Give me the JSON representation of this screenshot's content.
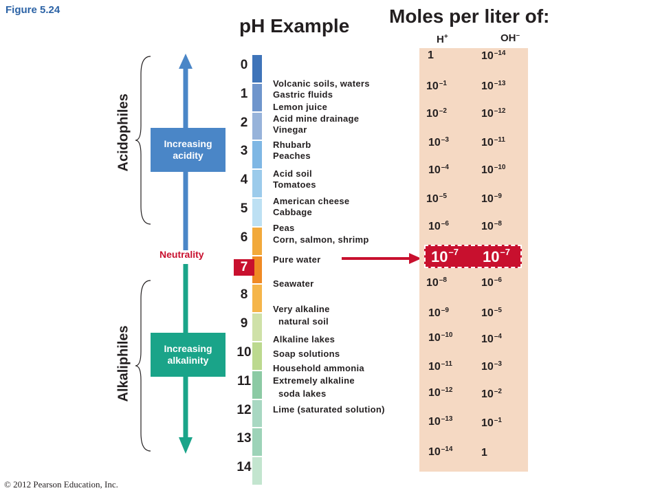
{
  "figure_label": "Figure 5.24",
  "ph_title": "pH Example",
  "moles_title": "Moles per liter of:",
  "h_heading": "H+",
  "oh_heading": "OH–",
  "acidophiles_label": "Acidophiles",
  "alkaliphiles_label": "Alkaliphiles",
  "increasing_acidity": [
    "Increasing",
    "acidity"
  ],
  "increasing_alkalinity": [
    "Increasing",
    "alkalinity"
  ],
  "neutrality_label": "Neutrality",
  "copyright": "© 2012 Pearson Education, Inc.",
  "ph_scale": [
    "0",
    "1",
    "2",
    "3",
    "4",
    "5",
    "6",
    "7",
    "8",
    "9",
    "10",
    "11",
    "12",
    "13",
    "14"
  ],
  "examples": [
    "Volcanic soils, waters",
    "Gastric fluids",
    "Lemon juice",
    "Acid mine drainage",
    "Vinegar",
    "Rhubarb",
    "Peaches",
    "Acid soil",
    "Tomatoes",
    "American cheese",
    "Cabbage",
    "Peas",
    "Corn, salmon, shrimp",
    "Pure water",
    "Seawater",
    "Very alkaline",
    "natural soil",
    "Alkaline lakes",
    "Soap solutions",
    "Household ammonia",
    "Extremely alkaline",
    "soda lakes",
    "Lime (saturated solution)"
  ],
  "h_concentration": [
    {
      "base": "1",
      "exp": ""
    },
    {
      "base": "10",
      "exp": "–1"
    },
    {
      "base": "10",
      "exp": "–2"
    },
    {
      "base": "10",
      "exp": "–3"
    },
    {
      "base": "10",
      "exp": "–4"
    },
    {
      "base": "10",
      "exp": "–5"
    },
    {
      "base": "10",
      "exp": "–6"
    },
    {
      "base": "10",
      "exp": "–7"
    },
    {
      "base": "10",
      "exp": "–8"
    },
    {
      "base": "10",
      "exp": "–9"
    },
    {
      "base": "10",
      "exp": "–10"
    },
    {
      "base": "10",
      "exp": "–11"
    },
    {
      "base": "10",
      "exp": "–12"
    },
    {
      "base": "10",
      "exp": "–13"
    },
    {
      "base": "10",
      "exp": "–14"
    }
  ],
  "oh_concentration": [
    {
      "base": "10",
      "exp": "–14"
    },
    {
      "base": "10",
      "exp": "–13"
    },
    {
      "base": "10",
      "exp": "–12"
    },
    {
      "base": "10",
      "exp": "–11"
    },
    {
      "base": "10",
      "exp": "–10"
    },
    {
      "base": "10",
      "exp": "–9"
    },
    {
      "base": "10",
      "exp": "–8"
    },
    {
      "base": "10",
      "exp": "–7"
    },
    {
      "base": "10",
      "exp": "–6"
    },
    {
      "base": "10",
      "exp": "–5"
    },
    {
      "base": "10",
      "exp": "–4"
    },
    {
      "base": "10",
      "exp": "–3"
    },
    {
      "base": "10",
      "exp": "–2"
    },
    {
      "base": "10",
      "exp": "–1"
    },
    {
      "base": "1",
      "exp": ""
    }
  ],
  "colors": {
    "acid_arrow": "#4a86c7",
    "alkali_arrow": "#1aa489",
    "neutral_red": "#c8102e",
    "panel": "#f5d9c3",
    "ph_segments": [
      "#3f74b9",
      "#6f95cc",
      "#97b3da",
      "#7fb7e4",
      "#9ccbeb",
      "#bde0f3",
      "#f2a93b",
      "#f08a24",
      "#f5b54a",
      "#cfe1a8",
      "#bcd98f",
      "#8ccaa4",
      "#a8d8c2",
      "#9dd3b8",
      "#c3e5cf"
    ]
  }
}
